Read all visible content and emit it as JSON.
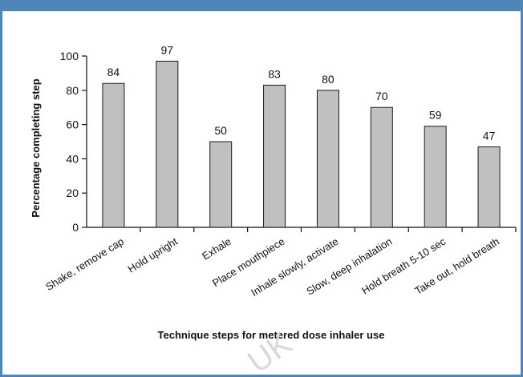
{
  "colors": {
    "frame": "#4f86b9",
    "bar_fill": "#c0c0c0",
    "bar_stroke": "#1a1a1a",
    "watermark": "#d9d9d9"
  },
  "watermark_text": "UK",
  "chart_data": {
    "type": "bar",
    "title": "",
    "xlabel": "Technique steps for metered dose inhaler use",
    "ylabel": "Percentage completing step",
    "ylim": [
      0,
      100
    ],
    "yticks": [
      0,
      20,
      40,
      60,
      80,
      100
    ],
    "grid": false,
    "categories": [
      "Shake, remove cap",
      "Hold upright",
      "Exhale",
      "Place mouthpiece",
      "Inhale slowly, activate",
      "Slow, deep inhalation",
      "Hold breath 5-10 sec",
      "Take out, hold breath"
    ],
    "values": [
      84,
      97,
      50,
      83,
      80,
      70,
      59,
      47
    ]
  }
}
